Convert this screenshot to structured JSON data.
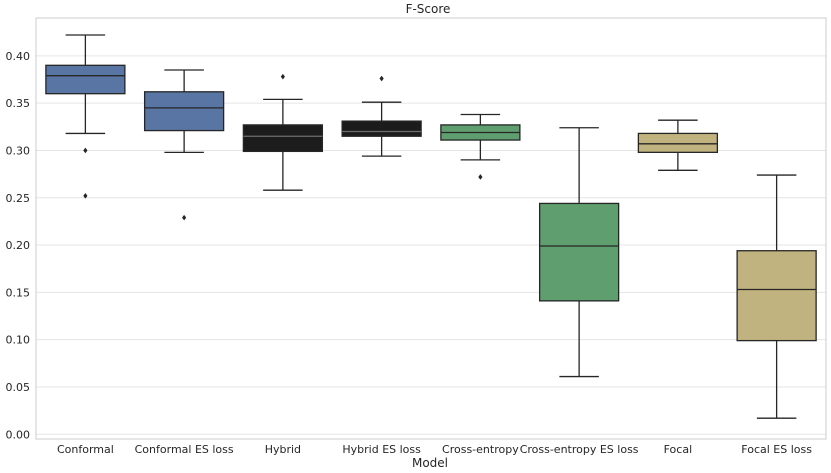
{
  "chart_data": {
    "type": "box",
    "title": "F-Score",
    "xlabel": "Model",
    "ylabel": "",
    "ylim": [
      -0.005,
      0.44
    ],
    "yticks": [
      0.0,
      0.05,
      0.1,
      0.15,
      0.2,
      0.25,
      0.3,
      0.35,
      0.4
    ],
    "grid": true,
    "categories": [
      "Conformal",
      "Conformal ES loss",
      "Hybrid",
      "Hybrid ES loss",
      "Cross-entropy",
      "Cross-entropy ES loss",
      "Focal",
      "Focal ES loss"
    ],
    "boxes": [
      {
        "name": "Conformal",
        "whislo": 0.318,
        "q1": 0.36,
        "med": 0.379,
        "q3": 0.39,
        "whishi": 0.422,
        "fliers": [
          0.3,
          0.252
        ],
        "color": "#5975a4"
      },
      {
        "name": "Conformal ES loss",
        "whislo": 0.298,
        "q1": 0.321,
        "med": 0.345,
        "q3": 0.362,
        "whishi": 0.385,
        "fliers": [
          0.229
        ],
        "color": "#5975a4"
      },
      {
        "name": "Hybrid",
        "whislo": 0.258,
        "q1": 0.299,
        "med": 0.315,
        "q3": 0.327,
        "whishi": 0.354,
        "fliers": [
          0.378
        ],
        "color": "#1c1c1c"
      },
      {
        "name": "Hybrid ES loss",
        "whislo": 0.294,
        "q1": 0.315,
        "med": 0.32,
        "q3": 0.331,
        "whishi": 0.351,
        "fliers": [
          0.376
        ],
        "color": "#1c1c1c"
      },
      {
        "name": "Cross-entropy",
        "whislo": 0.29,
        "q1": 0.311,
        "med": 0.319,
        "q3": 0.327,
        "whishi": 0.338,
        "fliers": [
          0.272
        ],
        "color": "#5f9e6e"
      },
      {
        "name": "Cross-entropy ES loss",
        "whislo": 0.061,
        "q1": 0.141,
        "med": 0.199,
        "q3": 0.244,
        "whishi": 0.324,
        "fliers": [],
        "color": "#5f9e6e"
      },
      {
        "name": "Focal",
        "whislo": 0.279,
        "q1": 0.298,
        "med": 0.307,
        "q3": 0.318,
        "whishi": 0.332,
        "fliers": [],
        "color": "#c1b37f"
      },
      {
        "name": "Focal ES loss",
        "whislo": 0.017,
        "q1": 0.099,
        "med": 0.153,
        "q3": 0.194,
        "whishi": 0.274,
        "fliers": [],
        "color": "#c1b37f"
      }
    ]
  },
  "colors": {
    "grid": "#e5e5e5",
    "spine": "#cccccc",
    "line": "#262626"
  }
}
